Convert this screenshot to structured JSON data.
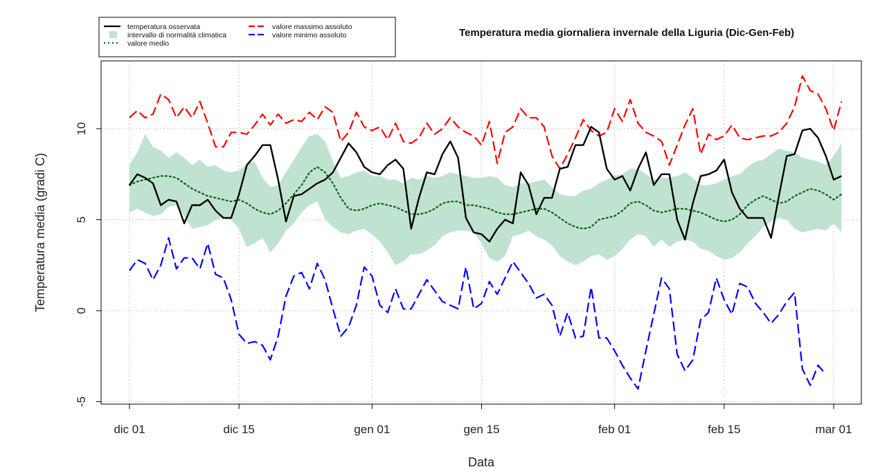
{
  "chart_data": {
    "type": "line",
    "title": "Temperatura media giornaliera invernale della Liguria (Dic-Gen-Feb)",
    "xlabel": "Data",
    "ylabel": "Temperatura media (gradi C)",
    "x_range": [
      0,
      90
    ],
    "ylim": [
      -5,
      13.5
    ],
    "y_ticks": [
      -5,
      0,
      5,
      10
    ],
    "x_ticks": [
      {
        "day": 0,
        "label": "dic 01"
      },
      {
        "day": 14,
        "label": "dic 15"
      },
      {
        "day": 31,
        "label": "gen 01"
      },
      {
        "day": 45,
        "label": "gen 15"
      },
      {
        "day": 62,
        "label": "feb 01"
      },
      {
        "day": 76,
        "label": "feb 15"
      },
      {
        "day": 90,
        "label": "mar 01"
      }
    ],
    "grid": true,
    "legend": {
      "position": "top-left",
      "items": [
        {
          "label": "temperatura osservata",
          "style": "solid",
          "color": "#000000"
        },
        {
          "label": "intervallo di normalità climatica",
          "style": "band",
          "color": "#bfe3d0"
        },
        {
          "label": "valore medio",
          "style": "dotted",
          "color": "#006400"
        },
        {
          "label": "valore massimo assoluto",
          "style": "dashed",
          "color": "#ff0000"
        },
        {
          "label": "valore minimo assoluto",
          "style": "dashed",
          "color": "#0000ff"
        }
      ]
    },
    "series": [
      {
        "name": "temperatura osservata",
        "color": "#000000",
        "style": "solid",
        "values": [
          6.9,
          7.5,
          7.3,
          7.0,
          5.8,
          6.1,
          6.0,
          4.8,
          5.8,
          5.8,
          6.1,
          5.5,
          5.1,
          5.1,
          6.4,
          8.0,
          8.5,
          9.1,
          9.1,
          7.2,
          4.9,
          6.3,
          6.4,
          6.7,
          7.0,
          7.2,
          7.6,
          8.4,
          9.2,
          8.7,
          7.9,
          7.6,
          7.5,
          8.0,
          8.3,
          7.8,
          4.5,
          6.2,
          7.6,
          7.5,
          8.6,
          9.3,
          8.4,
          5.1,
          4.3,
          4.2,
          3.8,
          4.5,
          5.0,
          4.8,
          7.6,
          6.9,
          5.3,
          6.2,
          6.2,
          7.8,
          7.9,
          9.1,
          9.1,
          10.1,
          9.8,
          7.8,
          7.2,
          7.4,
          6.6,
          7.8,
          8.7,
          6.9,
          7.5,
          7.5,
          5.0,
          3.9,
          5.9,
          7.4,
          7.5,
          7.7,
          8.3,
          6.5,
          5.6,
          5.1,
          5.1,
          5.1,
          4.0,
          6.3,
          8.5,
          8.6,
          9.9,
          10.0,
          9.5,
          8.5,
          7.2,
          7.4
        ]
      },
      {
        "name": "valore medio",
        "color": "#006400",
        "style": "dotted",
        "values": [
          6.9,
          7.1,
          7.2,
          7.3,
          7.4,
          7.4,
          7.3,
          7.0,
          6.7,
          6.5,
          6.3,
          6.2,
          6.1,
          6.0,
          6.1,
          5.9,
          5.6,
          5.4,
          5.3,
          5.5,
          5.9,
          6.4,
          6.9,
          7.6,
          7.9,
          7.6,
          7.0,
          6.2,
          5.6,
          5.5,
          5.6,
          5.8,
          5.9,
          5.8,
          5.7,
          5.5,
          5.3,
          5.3,
          5.4,
          5.6,
          5.9,
          6.0,
          6.0,
          5.8,
          5.8,
          5.7,
          5.6,
          5.4,
          5.3,
          5.3,
          5.4,
          5.5,
          5.6,
          5.6,
          5.4,
          5.1,
          4.8,
          4.6,
          4.5,
          4.6,
          5.0,
          5.1,
          5.2,
          5.5,
          5.9,
          6.0,
          5.8,
          5.5,
          5.4,
          5.5,
          5.6,
          5.6,
          5.5,
          5.4,
          5.2,
          5.0,
          4.9,
          5.0,
          5.3,
          5.8,
          6.1,
          6.3,
          6.1,
          5.9,
          6.0,
          6.3,
          6.5,
          6.7,
          6.6,
          6.4,
          6.1,
          6.4
        ]
      },
      {
        "name": "valore massimo assoluto",
        "color": "#ff0000",
        "style": "dashed",
        "values": [
          10.6,
          11.0,
          10.6,
          10.8,
          11.9,
          11.6,
          10.6,
          11.2,
          10.6,
          11.5,
          10.3,
          9.0,
          9.0,
          9.8,
          9.8,
          9.7,
          10.2,
          10.8,
          10.2,
          10.8,
          10.3,
          10.5,
          10.4,
          10.9,
          10.5,
          11.2,
          10.9,
          9.3,
          9.8,
          10.9,
          10.1,
          9.9,
          10.1,
          9.4,
          10.3,
          9.3,
          9.2,
          9.5,
          10.3,
          9.7,
          10.0,
          10.6,
          10.1,
          9.8,
          9.6,
          9.1,
          10.4,
          8.1,
          9.8,
          10.1,
          11.1,
          10.6,
          10.6,
          10.1,
          8.5,
          7.8,
          8.6,
          9.5,
          10.5,
          9.9,
          9.6,
          9.8,
          11.1,
          10.4,
          11.6,
          10.3,
          9.8,
          9.6,
          9.3,
          8.0,
          9.1,
          10.2,
          11.1,
          8.6,
          9.7,
          9.4,
          9.6,
          10.2,
          9.5,
          9.4,
          9.5,
          9.6,
          9.6,
          9.8,
          10.3,
          11.2,
          12.9,
          12.1,
          11.9,
          11.1,
          9.9,
          11.5
        ]
      },
      {
        "name": "valore minimo assoluto",
        "color": "#0000ff",
        "style": "dashed",
        "values": [
          2.2,
          2.8,
          2.6,
          1.7,
          2.5,
          4.0,
          2.3,
          2.9,
          2.9,
          2.3,
          3.7,
          2.0,
          1.8,
          0.6,
          -1.3,
          -1.8,
          -1.7,
          -1.9,
          -2.7,
          -1.4,
          0.8,
          1.9,
          2.1,
          1.2,
          2.6,
          1.7,
          0.1,
          -1.4,
          -0.9,
          0.3,
          2.4,
          1.9,
          0.3,
          -0.1,
          1.2,
          0.1,
          0.1,
          0.9,
          1.7,
          1.1,
          0.5,
          0.3,
          0.1,
          2.4,
          0.1,
          0.4,
          1.6,
          0.9,
          1.8,
          2.7,
          2.1,
          1.5,
          0.7,
          0.9,
          0.3,
          -1.4,
          -0.1,
          -1.5,
          -1.4,
          1.3,
          -1.5,
          -1.5,
          -2.2,
          -3.0,
          -3.7,
          -4.3,
          -2.2,
          -0.2,
          1.8,
          1.2,
          -2.4,
          -3.3,
          -2.7,
          -0.5,
          -0.1,
          1.8,
          0.6,
          -0.2,
          1.5,
          1.3,
          0.4,
          -0.1,
          -0.7,
          -0.2,
          0.5,
          1.0,
          -3.2,
          -4.1,
          -3.0,
          -3.5
        ]
      }
    ],
    "band": {
      "name": "intervallo di normalità climatica",
      "color": "#bfe3d0",
      "upper": [
        8.0,
        8.7,
        9.7,
        9.0,
        8.8,
        8.4,
        8.7,
        8.4,
        8.0,
        8.3,
        7.9,
        8.0,
        7.7,
        7.6,
        7.7,
        8.1,
        8.2,
        7.3,
        6.8,
        6.9,
        7.6,
        8.3,
        9.0,
        9.6,
        9.7,
        9.3,
        8.2,
        7.3,
        7.4,
        7.6,
        7.7,
        7.4,
        7.4,
        7.2,
        7.2,
        7.0,
        7.3,
        7.2,
        7.4,
        7.3,
        7.4,
        7.6,
        7.5,
        7.4,
        7.3,
        7.3,
        7.4,
        7.3,
        6.9,
        6.8,
        7.0,
        7.0,
        7.1,
        7.2,
        6.8,
        6.4,
        6.3,
        6.3,
        6.6,
        6.7,
        7.0,
        7.2,
        7.4,
        7.5,
        7.8,
        7.8,
        7.5,
        7.2,
        7.3,
        7.3,
        7.4,
        7.6,
        7.3,
        6.9,
        6.9,
        7.0,
        7.2,
        7.4,
        7.5,
        7.9,
        8.2,
        8.3,
        8.6,
        8.9,
        8.8,
        8.7,
        8.4,
        8.3,
        8.2,
        8.0,
        8.5,
        9.2
      ],
      "lower": [
        5.4,
        5.6,
        5.4,
        5.2,
        5.3,
        5.7,
        5.8,
        5.2,
        4.5,
        4.6,
        4.7,
        5.0,
        5.1,
        5.0,
        4.5,
        3.5,
        3.7,
        4.0,
        3.2,
        3.7,
        4.4,
        4.8,
        5.4,
        5.8,
        6.0,
        5.0,
        4.6,
        4.3,
        4.2,
        4.4,
        4.5,
        4.2,
        3.8,
        3.2,
        2.5,
        2.7,
        3.1,
        3.1,
        3.3,
        3.6,
        4.1,
        4.3,
        4.4,
        4.4,
        4.3,
        3.7,
        2.9,
        2.7,
        3.0,
        4.1,
        4.2,
        4.4,
        4.1,
        3.9,
        3.6,
        3.0,
        2.7,
        2.5,
        2.7,
        3.0,
        3.1,
        2.8,
        3.0,
        3.4,
        3.9,
        4.2,
        4.1,
        3.5,
        3.9,
        3.5,
        3.8,
        3.9,
        3.8,
        3.4,
        3.3,
        3.0,
        2.8,
        2.9,
        3.2,
        3.7,
        4.1,
        4.6,
        4.9,
        5.1,
        5.0,
        4.5,
        4.3,
        4.4,
        4.5,
        4.4,
        4.8,
        4.3
      ]
    }
  }
}
